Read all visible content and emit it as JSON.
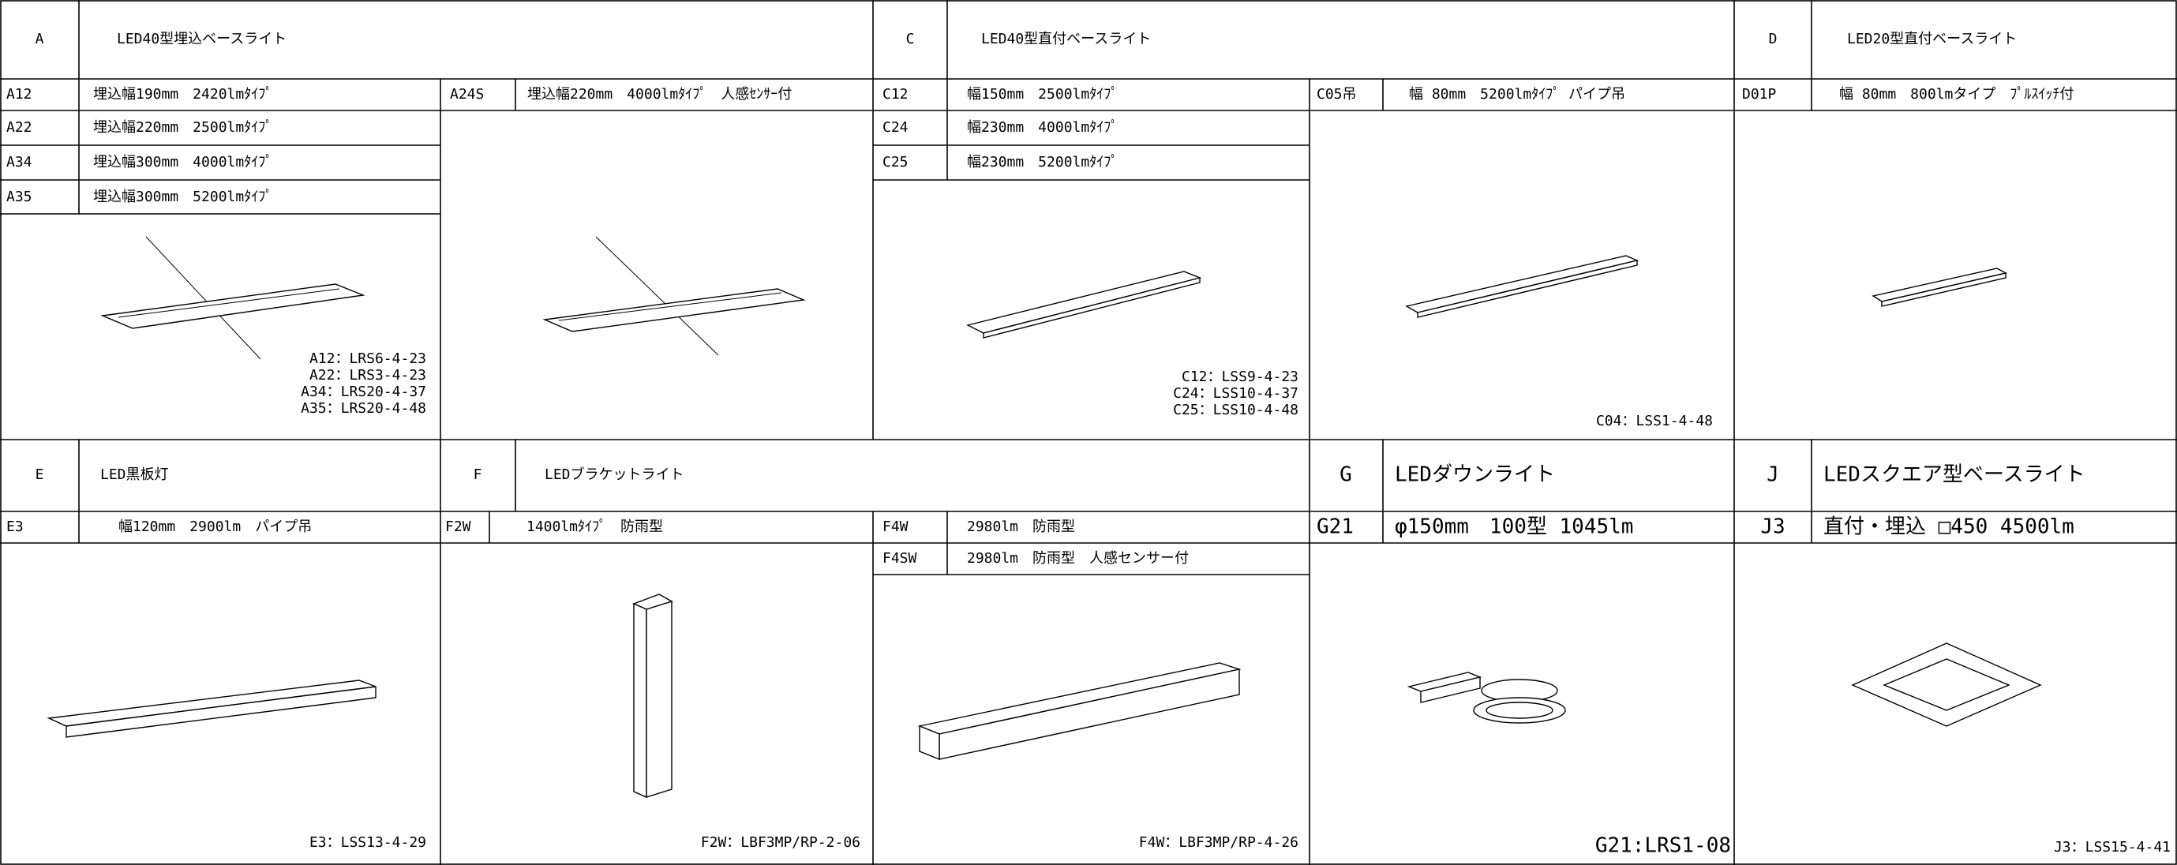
{
  "sections": [
    {
      "code": "A",
      "title": "LED40型埋込ベースライト",
      "items": [
        {
          "code": "A12",
          "desc": "埋込幅190mm　2420lmﾀｲﾌﾟ"
        },
        {
          "code": "A24S",
          "desc": "埋込幅220mm　4000lmﾀｲﾌﾟ　人感ｾﾝｻｰ付"
        },
        {
          "code": "A22",
          "desc": "埋込幅220mm　2500lmﾀｲﾌﾟ"
        },
        {
          "code": "A34",
          "desc": "埋込幅300mm　4000lmﾀｲﾌﾟ"
        },
        {
          "code": "A35",
          "desc": "埋込幅300mm　5200lmﾀｲﾌﾟ"
        }
      ],
      "models": [
        "A12：LRS6-4-23",
        "A22：LRS3-4-23",
        "A34：LRS20-4-37",
        "A35：LRS20-4-48"
      ]
    },
    {
      "code": "C",
      "title": "LED40型直付ベースライト",
      "items": [
        {
          "code": "C12",
          "desc": "幅150mm　2500lmﾀｲﾌﾟ"
        },
        {
          "code": "C05吊",
          "desc": "幅 80mm　5200lmﾀｲﾌﾟ パイプ吊"
        },
        {
          "code": "C24",
          "desc": "幅230mm　4000lmﾀｲﾌﾟ"
        },
        {
          "code": "C25",
          "desc": "幅230mm　5200lmﾀｲﾌﾟ"
        }
      ],
      "models": [
        "C12：LSS9-4-23",
        "C24：LSS10-4-37",
        "C25：LSS10-4-48",
        "C04：LSS1-4-48"
      ]
    },
    {
      "code": "D",
      "title": "LED20型直付ベースライト",
      "items": [
        {
          "code": "D01P",
          "desc": "幅 80mm　800lmタイプ　ﾌﾟﾙｽｲｯﾁ付"
        }
      ],
      "models": []
    },
    {
      "code": "E",
      "title": "LED黒板灯",
      "items": [
        {
          "code": "E3",
          "desc": "幅120mm　2900lm　パイプ吊"
        }
      ],
      "models": [
        "E3：LSS13-4-29"
      ]
    },
    {
      "code": "F",
      "title": "LEDブラケットライト",
      "items": [
        {
          "code": "F2W",
          "desc": "1400lmﾀｲﾌﾟ　防雨型"
        },
        {
          "code": "F4W",
          "desc": "2980lm　防雨型"
        },
        {
          "code": "F4SW",
          "desc": "2980lm　防雨型　人感センサー付"
        }
      ],
      "models": [
        "F2W：LBF3MP/RP-2-06",
        "F4W：LBF3MP/RP-4-26"
      ]
    },
    {
      "code": "G",
      "title": "LEDダウンライト",
      "items": [
        {
          "code": "G21",
          "desc": "φ150mm　100型 1045lm"
        }
      ],
      "models": [
        "G21:LRS1-08"
      ]
    },
    {
      "code": "J",
      "title": "LEDスクエア型ベースライト",
      "items": [
        {
          "code": "J3",
          "desc": "直付・埋込 □450 4500lm"
        }
      ],
      "models": [
        "J3：LSS15-4-41"
      ]
    }
  ]
}
